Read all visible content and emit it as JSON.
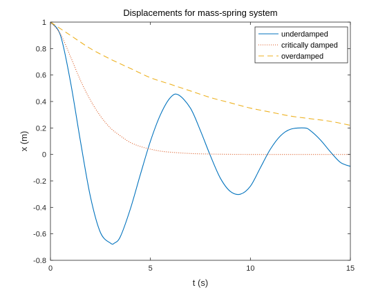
{
  "chart_data": {
    "type": "line",
    "title": "Displacements for mass-spring system",
    "xlabel": "t (s)",
    "ylabel": "x (m)",
    "xlim": [
      0,
      15
    ],
    "ylim": [
      -0.8,
      1
    ],
    "xticks": [
      0,
      5,
      10,
      15
    ],
    "xtick_labels": [
      "0",
      "5",
      "10",
      "15"
    ],
    "yticks": [
      -0.8,
      -0.6,
      -0.4,
      -0.2,
      0,
      0.2,
      0.4,
      0.6,
      0.8,
      1
    ],
    "ytick_labels": [
      "-0.8",
      "-0.6",
      "-0.4",
      "-0.2",
      "0",
      "0.2",
      "0.4",
      "0.6",
      "0.8",
      "1"
    ],
    "grid": false,
    "legend_position": "top-right",
    "series": [
      {
        "name": "underdamped",
        "color": "#0072BD",
        "style": "solid",
        "x": [
          0,
          0.5,
          1,
          1.5,
          2,
          2.5,
          3,
          3.2,
          3.5,
          4,
          4.5,
          5,
          5.5,
          6,
          6.4,
          7,
          7.5,
          8,
          8.5,
          9,
          9.5,
          10,
          10.5,
          11,
          11.5,
          12,
          12.7,
          13,
          13.5,
          14,
          14.5,
          15
        ],
        "y": [
          1,
          0.9,
          0.55,
          0.1,
          -0.32,
          -0.59,
          -0.67,
          -0.67,
          -0.62,
          -0.41,
          -0.15,
          0.1,
          0.3,
          0.43,
          0.45,
          0.35,
          0.18,
          -0.01,
          -0.18,
          -0.28,
          -0.3,
          -0.24,
          -0.1,
          0.04,
          0.14,
          0.19,
          0.2,
          0.18,
          0.11,
          0.02,
          -0.06,
          -0.09
        ]
      },
      {
        "name": "critically damped",
        "color": "#D95319",
        "style": "dotted",
        "x": [
          0,
          0.5,
          1,
          1.5,
          2,
          2.5,
          3,
          3.5,
          4,
          4.5,
          5,
          5.5,
          6,
          7,
          8,
          9,
          10,
          11,
          12,
          13,
          14,
          15
        ],
        "y": [
          1,
          0.91,
          0.74,
          0.56,
          0.41,
          0.29,
          0.2,
          0.14,
          0.09,
          0.06,
          0.04,
          0.025,
          0.017,
          0.007,
          0.003,
          0.001,
          0,
          0,
          0,
          0,
          0,
          0
        ]
      },
      {
        "name": "overdamped",
        "color": "#EDB120",
        "style": "dashed",
        "x": [
          0,
          1,
          2,
          3,
          4,
          5,
          6,
          7,
          8,
          9,
          10,
          11,
          12,
          13,
          14,
          15
        ],
        "y": [
          1,
          0.9,
          0.8,
          0.72,
          0.65,
          0.58,
          0.53,
          0.48,
          0.43,
          0.39,
          0.35,
          0.32,
          0.29,
          0.27,
          0.25,
          0.22
        ]
      }
    ]
  }
}
